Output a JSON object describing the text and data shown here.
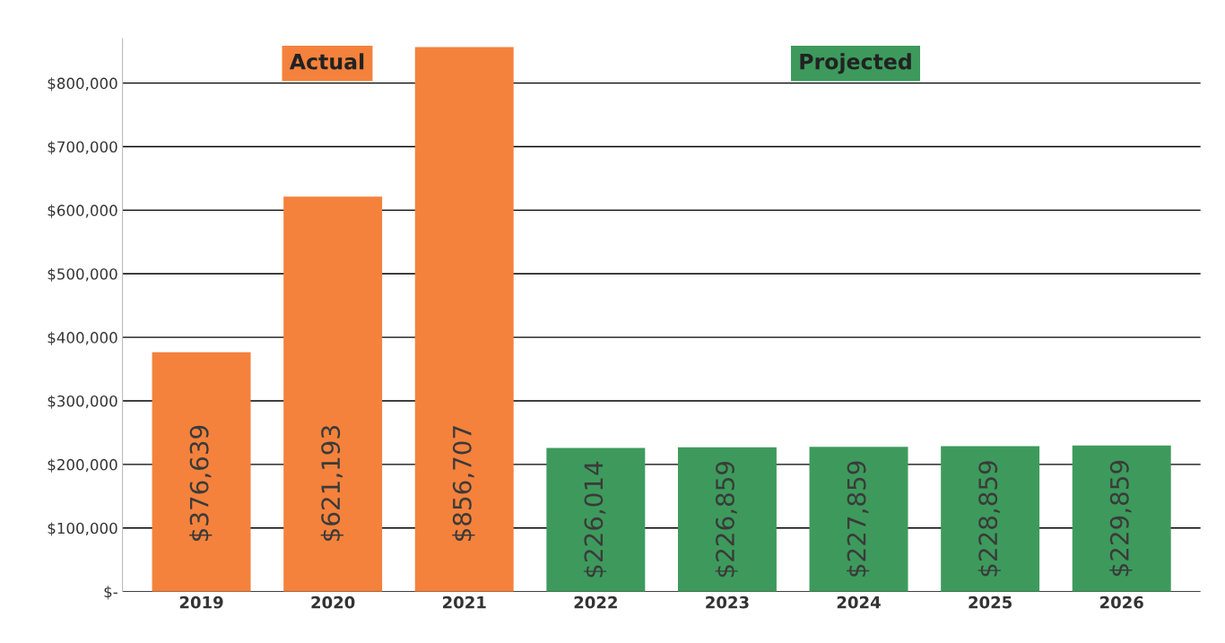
{
  "chart_data": {
    "type": "bar",
    "categories": [
      "2019",
      "2020",
      "2021",
      "2022",
      "2023",
      "2024",
      "2025",
      "2026"
    ],
    "values": [
      376639,
      621193,
      856707,
      226014,
      226859,
      227859,
      228859,
      229859
    ],
    "colors": [
      "#f4823c",
      "#f4823c",
      "#f4823c",
      "#3d9a5c",
      "#3d9a5c",
      "#3d9a5c",
      "#3d9a5c",
      "#3d9a5c"
    ],
    "value_labels": [
      "$376,639",
      "$621,193",
      "$856,707",
      "$226,014",
      "$226,859",
      "$227,859",
      "$228,859",
      "$229,859"
    ],
    "annotations": [
      "Actual",
      "Projected"
    ],
    "ylim": [
      0,
      870000
    ],
    "yticks": [
      {
        "value": 0,
        "label": "$-"
      },
      {
        "value": 100000,
        "label": "$100,000"
      },
      {
        "value": 200000,
        "label": "$200,000"
      },
      {
        "value": 300000,
        "label": "$300,000"
      },
      {
        "value": 400000,
        "label": "$400,000"
      },
      {
        "value": 500000,
        "label": "$500,000"
      },
      {
        "value": 600000,
        "label": "$600,000"
      },
      {
        "value": 700000,
        "label": "$700,000"
      },
      {
        "value": 800000,
        "label": "$800,000"
      }
    ],
    "grid": "y"
  }
}
